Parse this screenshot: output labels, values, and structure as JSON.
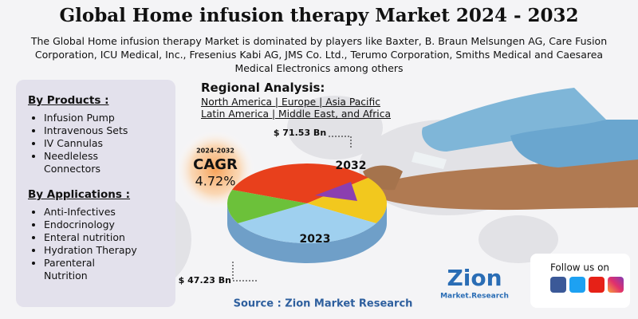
{
  "header": {
    "title": "Global Home infusion therapy Market 2024 - 2032",
    "subtitle": "The Global Home infusion therapy Market is dominated by players like Baxter, B. Braun Melsungen AG, Care Fusion Corporation, ICU Medical, Inc., Fresenius Kabi AG, JMS Co. Ltd., Terumo Corporation, Smiths Medical and Caesarea Medical Electronics among others"
  },
  "products": {
    "heading": "By Products :",
    "items": [
      "Infusion Pump",
      "Intravenous Sets",
      "IV Cannulas",
      "Needleless Connectors"
    ]
  },
  "applications": {
    "heading": "By Applications :",
    "items": [
      "Anti-Infectives",
      "Endocrinology",
      "Enteral nutrition",
      "Hydration Therapy",
      "Parenteral Nutrition"
    ]
  },
  "regional": {
    "heading": "Regional Analysis:",
    "lines": [
      "North America | Europe | Asia Pacific",
      "Latin America | Middle East, and Africa"
    ]
  },
  "cagr": {
    "period": "2024-2032",
    "label": "CAGR",
    "value": "4.72%"
  },
  "pie": {
    "year_end": "2032",
    "year_start": "2023",
    "value_end": "$ 71.53 Bn",
    "value_start": "$ 47.23 Bn"
  },
  "source": "Source : Zion Market Research",
  "logo": {
    "name": "Zion",
    "tagline": "Market.Research"
  },
  "social": {
    "label": "Follow us on"
  }
}
